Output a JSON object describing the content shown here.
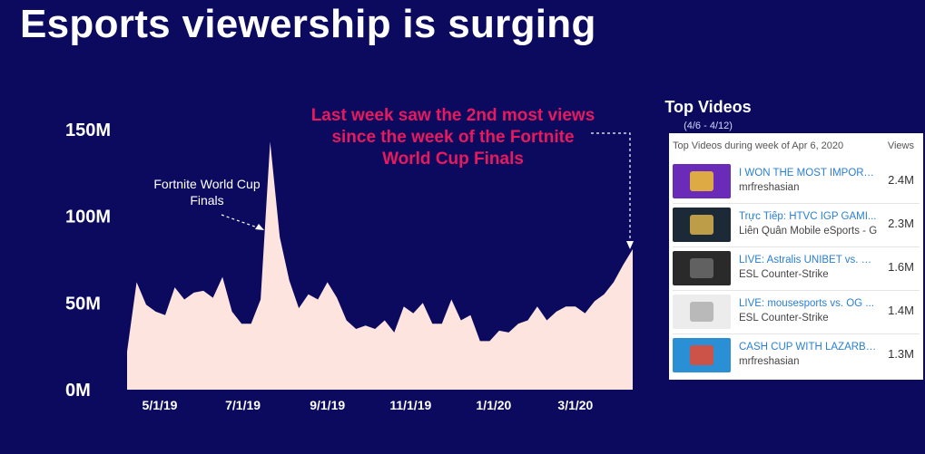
{
  "header": {
    "title": "Esports viewership is surging"
  },
  "callout": {
    "text": "Last week saw the 2nd most views since the week of the Fortnite World Cup Finals"
  },
  "annotation": {
    "peak_label": "Fortnite World Cup Finals"
  },
  "colors": {
    "background": "#0b0a5e",
    "area_fill": "#fde4df",
    "callout": "#e8195e",
    "link": "#2a7fd4"
  },
  "chart_data": {
    "type": "area",
    "title": "",
    "xlabel": "",
    "ylabel": "",
    "ylim": [
      0,
      150000000
    ],
    "y_ticks": [
      "0M",
      "50M",
      "100M",
      "150M"
    ],
    "y_tick_values": [
      0,
      50000000,
      100000000,
      150000000
    ],
    "x_ticks": [
      "5/1/19",
      "7/1/19",
      "9/1/19",
      "11/1/19",
      "1/1/20",
      "3/1/20"
    ],
    "x_tick_dates": [
      "2019-05-01",
      "2019-07-01",
      "2019-09-01",
      "2019-11-01",
      "2020-01-01",
      "2020-03-01"
    ],
    "grid": false,
    "legend": "none",
    "series": [
      {
        "x": [
          "2019-04-07",
          "2019-04-14",
          "2019-04-21",
          "2019-04-28",
          "2019-05-05",
          "2019-05-12",
          "2019-05-19",
          "2019-05-26",
          "2019-06-02",
          "2019-06-09",
          "2019-06-16",
          "2019-06-23",
          "2019-06-30",
          "2019-07-07",
          "2019-07-14",
          "2019-07-21",
          "2019-07-28",
          "2019-08-04",
          "2019-08-11",
          "2019-08-18",
          "2019-08-25",
          "2019-09-01",
          "2019-09-08",
          "2019-09-15",
          "2019-09-22",
          "2019-09-29",
          "2019-10-06",
          "2019-10-13",
          "2019-10-20",
          "2019-10-27",
          "2019-11-03",
          "2019-11-10",
          "2019-11-17",
          "2019-11-24",
          "2019-12-01",
          "2019-12-08",
          "2019-12-15",
          "2019-12-22",
          "2019-12-29",
          "2020-01-05",
          "2020-01-12",
          "2020-01-19",
          "2020-01-26",
          "2020-02-02",
          "2020-02-09",
          "2020-02-16",
          "2020-02-23",
          "2020-03-01",
          "2020-03-08",
          "2020-03-15",
          "2020-03-22",
          "2020-03-29",
          "2020-04-05",
          "2020-04-12"
        ],
        "values": [
          22000000,
          62000000,
          49000000,
          45000000,
          43000000,
          59000000,
          52000000,
          56000000,
          57000000,
          53000000,
          65000000,
          45000000,
          38000000,
          38000000,
          52000000,
          143000000,
          88000000,
          63000000,
          47000000,
          55000000,
          52000000,
          62000000,
          53000000,
          40000000,
          35000000,
          37000000,
          35000000,
          40000000,
          33000000,
          48000000,
          44000000,
          50000000,
          38000000,
          38000000,
          52000000,
          40000000,
          43000000,
          28000000,
          28000000,
          34000000,
          33000000,
          38000000,
          40000000,
          48000000,
          40000000,
          45000000,
          48000000,
          48000000,
          44000000,
          51000000,
          55000000,
          62000000,
          72000000,
          81000000
        ]
      }
    ]
  },
  "top_videos": {
    "title": "Top Videos",
    "subtitle": "(4/6 - 4/12)",
    "header": "Top Videos during week of Apr 6, 2020",
    "views_header": "Views",
    "items": [
      {
        "title": "I WON THE MOST IMPORT...",
        "channel": "mrfreshasian",
        "views": "2.4M",
        "thumb_color": "#6a2bb8",
        "thumb_accent": "#f2c12e"
      },
      {
        "title": "Trực Tiếp: HTVC IGP GAMI...",
        "channel": "Liên Quân Mobile eSports - G",
        "views": "2.3M",
        "thumb_color": "#1c2a38",
        "thumb_accent": "#d9b24a"
      },
      {
        "title": "LIVE: Astralis UNIBET vs. O...",
        "channel": "ESL Counter-Strike",
        "views": "1.6M",
        "thumb_color": "#2a2a2a",
        "thumb_accent": "#6b6b6b"
      },
      {
        "title": "LIVE: mousesports vs. OG ...",
        "channel": "ESL Counter-Strike",
        "views": "1.4M",
        "thumb_color": "#ececec",
        "thumb_accent": "#b0b0b0"
      },
      {
        "title": "CASH CUP WITH LAZARBE...",
        "channel": "mrfreshasian",
        "views": "1.3M",
        "thumb_color": "#2b8fd6",
        "thumb_accent": "#e8492e"
      }
    ]
  }
}
